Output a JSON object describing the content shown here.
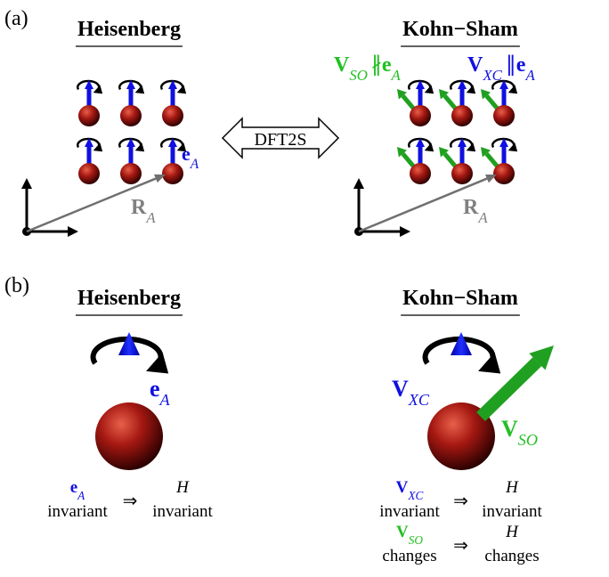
{
  "panel_a": {
    "label": "(a)",
    "heisenberg": {
      "title": "Heisenberg",
      "spin_label": {
        "base": "e",
        "sub": "A"
      },
      "position_label": {
        "base": "R",
        "sub": "A"
      }
    },
    "arrow_label": "DFT2S",
    "kohn_sham": {
      "title": "Kohn−Sham",
      "relation_1": {
        "lhs": {
          "base": "V",
          "sub": "SO"
        },
        "op": "∦",
        "rhs": {
          "base": "e",
          "sub": "A"
        }
      },
      "relation_2": {
        "lhs": {
          "base": "V",
          "sub": "XC"
        },
        "op": "∥",
        "rhs": {
          "base": "e",
          "sub": "A"
        }
      },
      "position_label": {
        "base": "R",
        "sub": "A"
      }
    }
  },
  "panel_b": {
    "label": "(b)",
    "heisenberg": {
      "title": "Heisenberg",
      "spin_label": {
        "base": "e",
        "sub": "A"
      },
      "implications": [
        {
          "cause": {
            "base": "e",
            "sub": "A"
          },
          "cause_state": "invariant",
          "arrow": "⇒",
          "effect": "H",
          "effect_state": "invariant"
        }
      ]
    },
    "kohn_sham": {
      "title": "Kohn−Sham",
      "xc_label": {
        "base": "V",
        "sub": "XC"
      },
      "so_label": {
        "base": "V",
        "sub": "SO"
      },
      "implications": [
        {
          "cause": {
            "base": "V",
            "sub": "XC"
          },
          "cause_state": "invariant",
          "arrow": "⇒",
          "effect": "H",
          "effect_state": "invariant"
        },
        {
          "cause": {
            "base": "V",
            "sub": "SO"
          },
          "cause_state": "changes",
          "arrow": "⇒",
          "effect": "H",
          "effect_state": "changes"
        }
      ]
    }
  }
}
